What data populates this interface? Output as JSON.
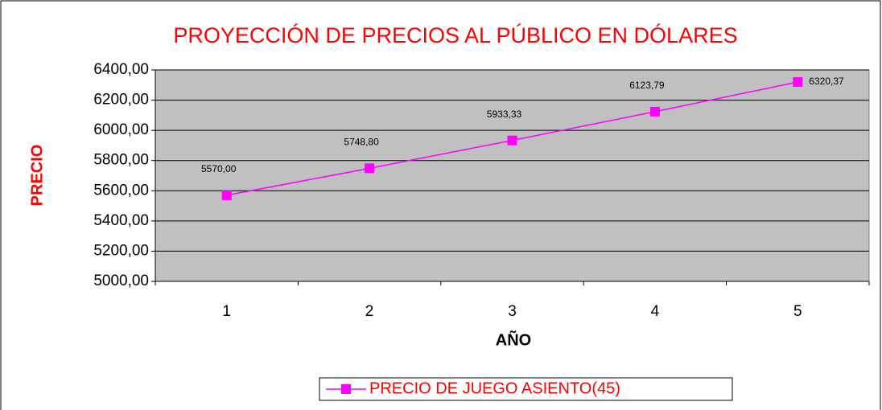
{
  "chart_data": {
    "type": "line",
    "title": "PROYECCIÓN DE PRECIOS AL PÚBLICO EN DÓLARES",
    "x_label": "AÑO",
    "y_label": "PRECIO",
    "categories": [
      "1",
      "2",
      "3",
      "4",
      "5"
    ],
    "series": [
      {
        "name": "PRECIO DE JUEGO ASIENTO(45)",
        "color": "#ff00ff",
        "values": [
          5570.0,
          5748.8,
          5933.33,
          6123.79,
          6320.37
        ],
        "value_labels": [
          "5570,00",
          "5748,80",
          "5933,33",
          "6123,79",
          "6320,37"
        ]
      }
    ],
    "ylim": [
      5000,
      6400
    ],
    "yticks": [
      {
        "value": 5000,
        "label": "5000,00"
      },
      {
        "value": 5200,
        "label": "5200,00"
      },
      {
        "value": 5400,
        "label": "5400,00"
      },
      {
        "value": 5600,
        "label": "5600,00"
      },
      {
        "value": 5800,
        "label": "5800,00"
      },
      {
        "value": 6000,
        "label": "6000,00"
      },
      {
        "value": 6200,
        "label": "6200,00"
      },
      {
        "value": 6400,
        "label": "6400,00"
      }
    ],
    "grid": true,
    "plot_background": "#c0c0c0",
    "legend": "bottom"
  }
}
